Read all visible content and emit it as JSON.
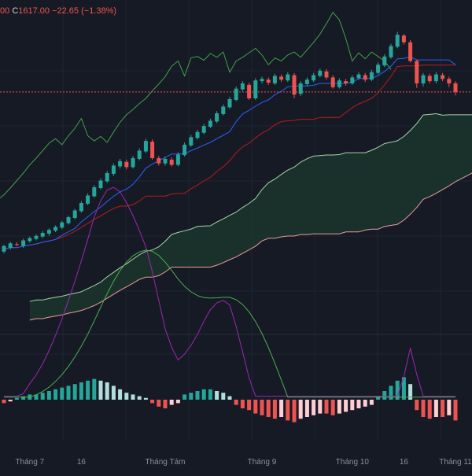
{
  "legend": {
    "prefix": "00",
    "close_key": "C",
    "close_value": "1617.00",
    "change": "−22.65",
    "change_pct": "(−1.38%)"
  },
  "colors": {
    "background": "#161a25",
    "up": "#26a69a",
    "down": "#ef5350",
    "grid": "#1f2433",
    "tenkan": "#2962ff",
    "kijun": "#b71c1c",
    "chikou": "#43a047",
    "span_a": "#a5d6a7",
    "span_b": "#ef9a9a",
    "cloud": "#1b3a2c",
    "macd_line": "#9c27b0",
    "signal_line": "#4caf50",
    "hist_up_strong": "#26a69a",
    "hist_up_weak": "#b2dfdb",
    "hist_down_strong": "#ef5350",
    "hist_down_weak": "#ffcdd2",
    "last_price_line": "#ef5350",
    "label_text": "#8a8f9c"
  },
  "chart_data": {
    "type": "candlestick",
    "x_labels": [
      "Tháng 7",
      "16",
      "Tháng Tám",
      "Tháng 9",
      "Tháng 10",
      "16",
      "Tháng 11"
    ],
    "x_label_positions": [
      4,
      12,
      25,
      40,
      54,
      62,
      70
    ],
    "ylim": [
      1000,
      1800
    ],
    "last_price": 1617,
    "candles": [
      [
        1190,
        1205,
        1185,
        1208
      ],
      [
        1200,
        1212,
        1195,
        1216
      ],
      [
        1210,
        1208,
        1204,
        1215
      ],
      [
        1205,
        1220,
        1200,
        1224
      ],
      [
        1218,
        1226,
        1214,
        1230
      ],
      [
        1224,
        1232,
        1220,
        1236
      ],
      [
        1230,
        1240,
        1226,
        1245
      ],
      [
        1238,
        1248,
        1232,
        1252
      ],
      [
        1246,
        1256,
        1242,
        1260
      ],
      [
        1254,
        1268,
        1250,
        1272
      ],
      [
        1266,
        1282,
        1262,
        1286
      ],
      [
        1280,
        1300,
        1276,
        1304
      ],
      [
        1298,
        1320,
        1294,
        1325
      ],
      [
        1318,
        1340,
        1314,
        1346
      ],
      [
        1338,
        1362,
        1334,
        1368
      ],
      [
        1360,
        1380,
        1356,
        1386
      ],
      [
        1378,
        1400,
        1374,
        1406
      ],
      [
        1398,
        1420,
        1392,
        1426
      ],
      [
        1418,
        1432,
        1412,
        1438
      ],
      [
        1430,
        1416,
        1410,
        1436
      ],
      [
        1416,
        1440,
        1412,
        1446
      ],
      [
        1438,
        1460,
        1434,
        1466
      ],
      [
        1458,
        1486,
        1454,
        1492
      ],
      [
        1484,
        1440,
        1436,
        1490
      ],
      [
        1440,
        1426,
        1420,
        1446
      ],
      [
        1426,
        1438,
        1420,
        1444
      ],
      [
        1436,
        1422,
        1418,
        1442
      ],
      [
        1422,
        1450,
        1418,
        1456
      ],
      [
        1448,
        1476,
        1444,
        1482
      ],
      [
        1474,
        1496,
        1470,
        1502
      ],
      [
        1494,
        1510,
        1490,
        1516
      ],
      [
        1508,
        1526,
        1504,
        1532
      ],
      [
        1524,
        1540,
        1520,
        1546
      ],
      [
        1538,
        1560,
        1534,
        1566
      ],
      [
        1558,
        1578,
        1554,
        1584
      ],
      [
        1576,
        1598,
        1572,
        1604
      ],
      [
        1596,
        1626,
        1592,
        1632
      ],
      [
        1624,
        1640,
        1620,
        1646
      ],
      [
        1636,
        1600,
        1596,
        1642
      ],
      [
        1600,
        1648,
        1596,
        1654
      ],
      [
        1646,
        1652,
        1640,
        1658
      ],
      [
        1650,
        1642,
        1636,
        1656
      ],
      [
        1640,
        1660,
        1636,
        1666
      ],
      [
        1658,
        1650,
        1644,
        1664
      ],
      [
        1648,
        1664,
        1644,
        1670
      ],
      [
        1662,
        1610,
        1600,
        1668
      ],
      [
        1612,
        1640,
        1606,
        1646
      ],
      [
        1638,
        1650,
        1632,
        1656
      ],
      [
        1648,
        1662,
        1644,
        1668
      ],
      [
        1660,
        1674,
        1656,
        1680
      ],
      [
        1672,
        1656,
        1650,
        1678
      ],
      [
        1656,
        1630,
        1626,
        1662
      ],
      [
        1630,
        1648,
        1626,
        1654
      ],
      [
        1646,
        1640,
        1634,
        1652
      ],
      [
        1640,
        1656,
        1636,
        1662
      ],
      [
        1654,
        1664,
        1650,
        1670
      ],
      [
        1662,
        1650,
        1644,
        1668
      ],
      [
        1650,
        1670,
        1646,
        1676
      ],
      [
        1668,
        1690,
        1664,
        1696
      ],
      [
        1688,
        1712,
        1684,
        1718
      ],
      [
        1710,
        1740,
        1706,
        1746
      ],
      [
        1738,
        1770,
        1734,
        1778
      ],
      [
        1768,
        1750,
        1744,
        1772
      ],
      [
        1750,
        1700,
        1696,
        1756
      ],
      [
        1700,
        1640,
        1628,
        1704
      ],
      [
        1640,
        1662,
        1632,
        1668
      ],
      [
        1660,
        1646,
        1640,
        1666
      ],
      [
        1646,
        1664,
        1640,
        1670
      ],
      [
        1662,
        1652,
        1646,
        1668
      ],
      [
        1652,
        1640,
        1630,
        1658
      ],
      [
        1640,
        1617,
        1608,
        1646
      ]
    ],
    "macd_histogram": [
      -0.2,
      -0.1,
      0.1,
      0.2,
      0.3,
      0.3,
      0.4,
      0.5,
      0.6,
      0.7,
      0.8,
      0.9,
      1.0,
      1.1,
      1.2,
      1.1,
      1.0,
      0.8,
      0.6,
      0.4,
      0.3,
      0.2,
      0.1,
      -0.2,
      -0.4,
      -0.5,
      -0.3,
      -0.2,
      0.3,
      0.4,
      0.5,
      0.6,
      0.6,
      0.5,
      0.4,
      0.2,
      -0.3,
      -0.5,
      -0.6,
      -0.8,
      -0.9,
      -1.0,
      -1.1,
      -1.0,
      -1.2,
      -1.3,
      -1.1,
      -1.0,
      -0.9,
      -0.8,
      -0.8,
      -0.9,
      -0.8,
      -0.7,
      -0.6,
      -0.5,
      -0.4,
      -0.3,
      0.2,
      0.5,
      0.8,
      1.1,
      1.3,
      0.9,
      -0.6,
      -1.0,
      -1.1,
      -1.0,
      -1.0,
      -0.9,
      -1.2
    ]
  }
}
